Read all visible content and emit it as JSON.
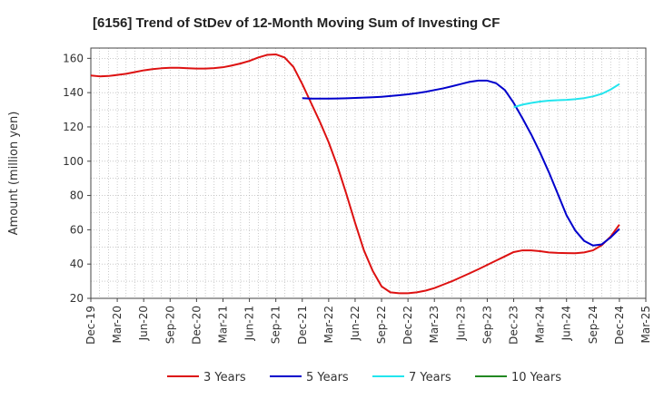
{
  "chart_data": {
    "type": "line",
    "title": "[6156]  Trend of StDev of 12-Month Moving Sum of Investing CF",
    "ylabel": "Amount (million yen)",
    "xlabel": "",
    "ylim": [
      20,
      166
    ],
    "yticks": [
      20,
      40,
      60,
      80,
      100,
      120,
      140,
      160
    ],
    "grid": true,
    "legend_position": "bottom",
    "x_tick_labels": [
      "Dec-19",
      "Mar-20",
      "Jun-20",
      "Sep-20",
      "Dec-20",
      "Mar-21",
      "Jun-21",
      "Sep-21",
      "Dec-21",
      "Mar-22",
      "Jun-22",
      "Sep-22",
      "Dec-22",
      "Mar-23",
      "Jun-23",
      "Sep-23",
      "Dec-23",
      "Mar-24",
      "Jun-24",
      "Sep-24",
      "Dec-24",
      "Mar-25"
    ],
    "series": [
      {
        "name": "3 Years",
        "color": "#dd1111",
        "points": [
          [
            "Dec-19",
            150
          ],
          [
            "Jan-20",
            149.5
          ],
          [
            "Feb-20",
            149.7
          ],
          [
            "Mar-20",
            150.3
          ],
          [
            "Apr-20",
            151
          ],
          [
            "May-20",
            152
          ],
          [
            "Jun-20",
            153
          ],
          [
            "Jul-20",
            153.7
          ],
          [
            "Aug-20",
            154.2
          ],
          [
            "Sep-20",
            154.5
          ],
          [
            "Oct-20",
            154.5
          ],
          [
            "Nov-20",
            154.2
          ],
          [
            "Dec-20",
            154
          ],
          [
            "Jan-21",
            154
          ],
          [
            "Feb-21",
            154.3
          ],
          [
            "Mar-21",
            154.8
          ],
          [
            "Apr-21",
            155.8
          ],
          [
            "May-21",
            157
          ],
          [
            "Jun-21",
            158.5
          ],
          [
            "Jul-21",
            160.5
          ],
          [
            "Aug-21",
            162
          ],
          [
            "Sep-21",
            162.3
          ],
          [
            "Oct-21",
            160.5
          ],
          [
            "Nov-21",
            155
          ],
          [
            "Dec-21",
            145
          ],
          [
            "Jan-22",
            134
          ],
          [
            "Feb-22",
            123
          ],
          [
            "Mar-22",
            111
          ],
          [
            "Apr-22",
            97
          ],
          [
            "May-22",
            81
          ],
          [
            "Jun-22",
            64
          ],
          [
            "Jul-22",
            48
          ],
          [
            "Aug-22",
            36
          ],
          [
            "Sep-22",
            27
          ],
          [
            "Oct-22",
            23.5
          ],
          [
            "Nov-22",
            23
          ],
          [
            "Dec-22",
            23
          ],
          [
            "Jan-23",
            23.5
          ],
          [
            "Feb-23",
            24.5
          ],
          [
            "Mar-23",
            26
          ],
          [
            "Apr-23",
            28
          ],
          [
            "May-23",
            30
          ],
          [
            "Jun-23",
            32.3
          ],
          [
            "Jul-23",
            34.6
          ],
          [
            "Aug-23",
            37
          ],
          [
            "Sep-23",
            39.5
          ],
          [
            "Oct-23",
            42
          ],
          [
            "Nov-23",
            44.5
          ],
          [
            "Dec-23",
            47
          ],
          [
            "Jan-24",
            48
          ],
          [
            "Feb-24",
            48
          ],
          [
            "Mar-24",
            47.5
          ],
          [
            "Apr-24",
            46.8
          ],
          [
            "May-24",
            46.5
          ],
          [
            "Jun-24",
            46.4
          ],
          [
            "Jul-24",
            46.3
          ],
          [
            "Aug-24",
            46.8
          ],
          [
            "Sep-24",
            48
          ],
          [
            "Oct-24",
            51
          ],
          [
            "Nov-24",
            56
          ],
          [
            "Dec-24",
            63
          ]
        ]
      },
      {
        "name": "5 Years",
        "color": "#0000cc",
        "points": [
          [
            "Dec-21",
            136.8
          ],
          [
            "Jan-22",
            136.5
          ],
          [
            "Feb-22",
            136.5
          ],
          [
            "Mar-22",
            136.5
          ],
          [
            "Apr-22",
            136.6
          ],
          [
            "May-22",
            136.7
          ],
          [
            "Jun-22",
            136.9
          ],
          [
            "Jul-22",
            137.1
          ],
          [
            "Aug-22",
            137.3
          ],
          [
            "Sep-22",
            137.6
          ],
          [
            "Oct-22",
            138
          ],
          [
            "Nov-22",
            138.5
          ],
          [
            "Dec-22",
            139
          ],
          [
            "Jan-23",
            139.7
          ],
          [
            "Feb-23",
            140.5
          ],
          [
            "Mar-23",
            141.5
          ],
          [
            "Apr-23",
            142.5
          ],
          [
            "May-23",
            143.7
          ],
          [
            "Jun-23",
            145
          ],
          [
            "Jul-23",
            146.3
          ],
          [
            "Aug-23",
            147
          ],
          [
            "Sep-23",
            147
          ],
          [
            "Oct-23",
            145.5
          ],
          [
            "Nov-23",
            141.5
          ],
          [
            "Dec-23",
            134
          ],
          [
            "Jan-24",
            125
          ],
          [
            "Feb-24",
            115.5
          ],
          [
            "Mar-24",
            105
          ],
          [
            "Apr-24",
            93.5
          ],
          [
            "May-24",
            81
          ],
          [
            "Jun-24",
            68.5
          ],
          [
            "Jul-24",
            59.5
          ],
          [
            "Aug-24",
            53.5
          ],
          [
            "Sep-24",
            50.8
          ],
          [
            "Oct-24",
            51.5
          ],
          [
            "Nov-24",
            55.5
          ],
          [
            "Dec-24",
            60.5
          ]
        ]
      },
      {
        "name": "7 Years",
        "color": "#22e5ee",
        "points": [
          [
            "Dec-23",
            131.5
          ],
          [
            "Jan-24",
            133
          ],
          [
            "Feb-24",
            134
          ],
          [
            "Mar-24",
            134.8
          ],
          [
            "Apr-24",
            135.3
          ],
          [
            "May-24",
            135.6
          ],
          [
            "Jun-24",
            135.8
          ],
          [
            "Jul-24",
            136.2
          ],
          [
            "Aug-24",
            136.8
          ],
          [
            "Sep-24",
            137.8
          ],
          [
            "Oct-24",
            139.3
          ],
          [
            "Nov-24",
            141.8
          ],
          [
            "Dec-24",
            145
          ]
        ]
      },
      {
        "name": "10 Years",
        "color": "#228822",
        "points": []
      }
    ]
  }
}
